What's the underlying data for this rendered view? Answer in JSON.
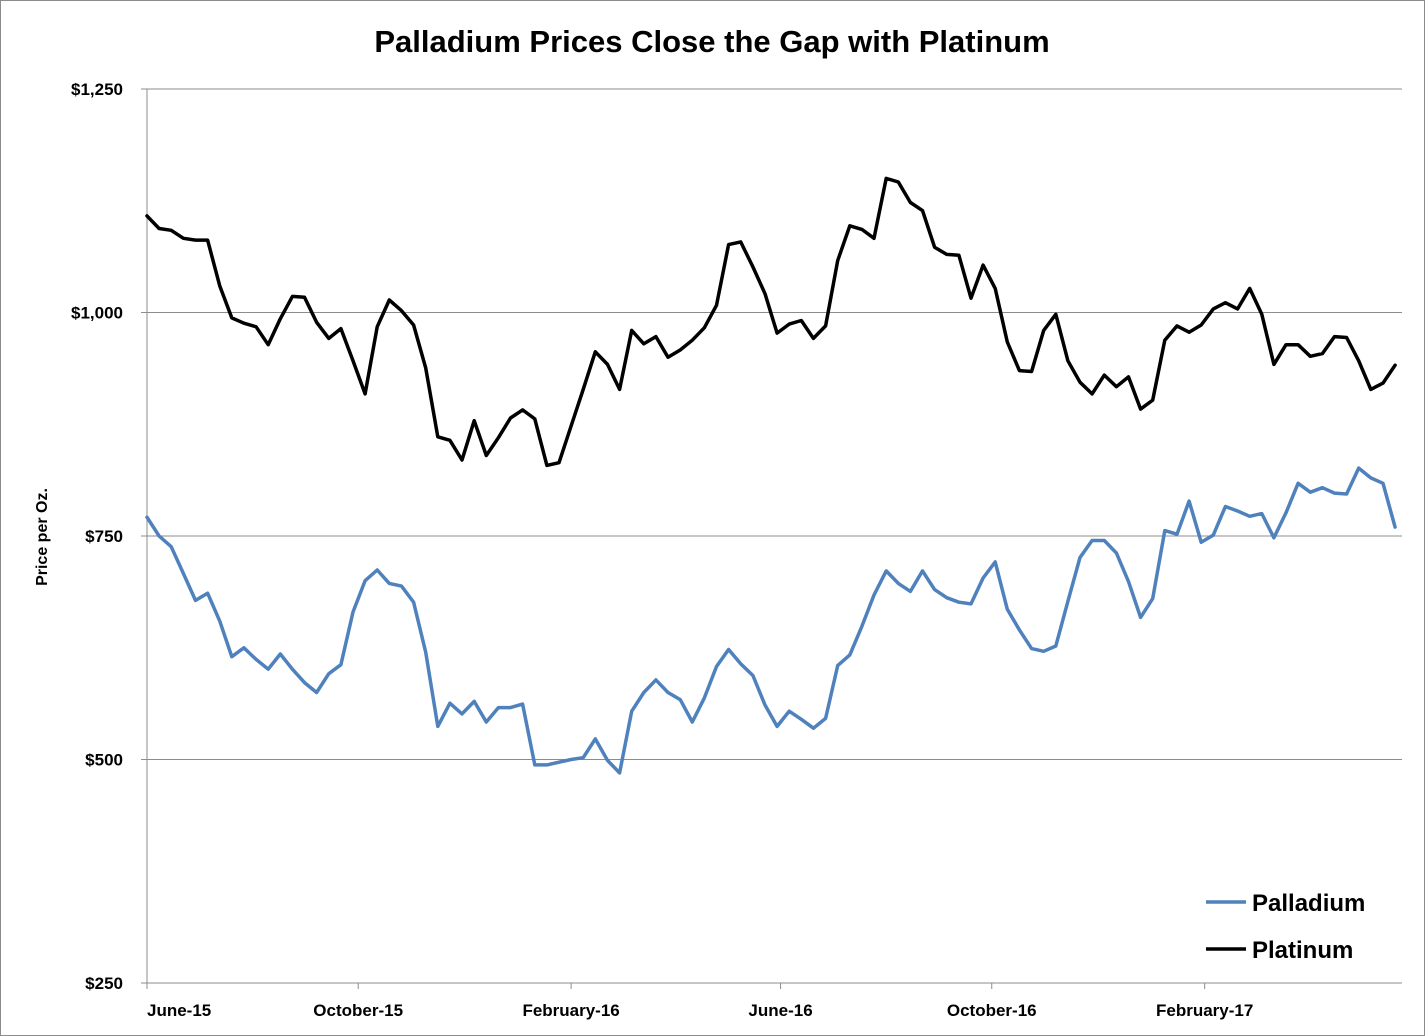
{
  "chart_data": {
    "type": "line",
    "title": "Palladium Prices Close the Gap with Platinum",
    "xlabel": "",
    "ylabel": "Price per Oz.",
    "ylim": [
      250,
      1250
    ],
    "yticks": [
      250,
      500,
      750,
      1000,
      1250
    ],
    "ytick_labels": [
      "$250",
      "$500",
      "$750",
      "$1,000",
      "$1,250"
    ],
    "xlim": [
      "2015-06-01",
      "2017-05-26"
    ],
    "xtick_dates": [
      "2015-06-01",
      "2015-10-01",
      "2016-02-01",
      "2016-06-01",
      "2016-10-01",
      "2017-02-01"
    ],
    "xtick_labels": [
      "June-15",
      "October-15",
      "February-16",
      "June-16",
      "October-16",
      "February-17"
    ],
    "grid": "horizontal",
    "legend_position": "bottom-right",
    "x": [
      "2015-06-01",
      "2015-06-08",
      "2015-06-15",
      "2015-06-22",
      "2015-06-29",
      "2015-07-06",
      "2015-07-13",
      "2015-07-20",
      "2015-07-27",
      "2015-08-03",
      "2015-08-10",
      "2015-08-17",
      "2015-08-24",
      "2015-08-31",
      "2015-09-07",
      "2015-09-14",
      "2015-09-21",
      "2015-09-28",
      "2015-10-05",
      "2015-10-12",
      "2015-10-19",
      "2015-10-26",
      "2015-11-02",
      "2015-11-09",
      "2015-11-16",
      "2015-11-23",
      "2015-11-30",
      "2015-12-07",
      "2015-12-14",
      "2015-12-21",
      "2015-12-28",
      "2016-01-04",
      "2016-01-11",
      "2016-01-18",
      "2016-01-25",
      "2016-02-01",
      "2016-02-08",
      "2016-02-15",
      "2016-02-22",
      "2016-02-29",
      "2016-03-07",
      "2016-03-14",
      "2016-03-21",
      "2016-03-28",
      "2016-04-04",
      "2016-04-11",
      "2016-04-18",
      "2016-04-25",
      "2016-05-02",
      "2016-05-09",
      "2016-05-16",
      "2016-05-23",
      "2016-05-30",
      "2016-06-06",
      "2016-06-13",
      "2016-06-20",
      "2016-06-27",
      "2016-07-04",
      "2016-07-11",
      "2016-07-18",
      "2016-07-25",
      "2016-08-01",
      "2016-08-08",
      "2016-08-15",
      "2016-08-22",
      "2016-08-29",
      "2016-09-05",
      "2016-09-12",
      "2016-09-19",
      "2016-09-26",
      "2016-10-03",
      "2016-10-10",
      "2016-10-17",
      "2016-10-24",
      "2016-10-31",
      "2016-11-07",
      "2016-11-14",
      "2016-11-21",
      "2016-11-28",
      "2016-12-05",
      "2016-12-12",
      "2016-12-19",
      "2016-12-26",
      "2017-01-02",
      "2017-01-09",
      "2017-01-16",
      "2017-01-23",
      "2017-01-30",
      "2017-02-06",
      "2017-02-13",
      "2017-02-20",
      "2017-02-27",
      "2017-03-06",
      "2017-03-13",
      "2017-03-20",
      "2017-03-27",
      "2017-04-03",
      "2017-04-10",
      "2017-04-17",
      "2017-04-24",
      "2017-05-01",
      "2017-05-08",
      "2017-05-15",
      "2017-05-22"
    ],
    "series": [
      {
        "name": "Palladium",
        "color": "#4f81bd",
        "values": [
          771,
          750,
          738,
          708,
          678,
          686,
          655,
          615,
          625,
          612,
          601,
          618,
          601,
          586,
          575,
          596,
          606,
          665,
          700,
          712,
          697,
          694,
          676,
          620,
          537,
          563,
          551,
          565,
          542,
          558,
          558,
          562,
          494,
          494,
          497,
          500,
          502,
          523,
          499,
          485,
          554,
          575,
          589,
          575,
          567,
          542,
          569,
          604,
          623,
          607,
          594,
          561,
          537,
          554,
          545,
          535,
          546,
          605,
          617,
          649,
          684,
          711,
          697,
          688,
          711,
          690,
          681,
          676,
          674,
          703,
          721,
          668,
          645,
          624,
          621,
          627,
          677,
          726,
          745,
          745,
          731,
          699,
          659,
          680,
          756,
          752,
          789,
          743,
          751,
          783,
          778,
          772,
          775,
          748,
          776,
          809,
          799,
          804,
          798,
          797,
          826,
          815,
          809,
          760
        ]
      },
      {
        "name": "Platinum",
        "color": "#000000",
        "values": [
          1108,
          1094,
          1092,
          1083,
          1081,
          1081,
          1030,
          994,
          988,
          984,
          964,
          993,
          1018,
          1017,
          989,
          971,
          982,
          946,
          909,
          984,
          1014,
          1002,
          986,
          938,
          861,
          857,
          835,
          879,
          840,
          860,
          882,
          891,
          881,
          829,
          832,
          873,
          914,
          956,
          942,
          914,
          980,
          965,
          973,
          950,
          958,
          969,
          983,
          1008,
          1076,
          1079,
          1051,
          1021,
          977,
          987,
          991,
          971,
          985,
          1058,
          1097,
          1093,
          1083,
          1150,
          1146,
          1123,
          1114,
          1073,
          1065,
          1064,
          1016,
          1053,
          1027,
          967,
          935,
          934,
          980,
          998,
          946,
          922,
          909,
          930,
          917,
          928,
          892,
          902,
          969,
          985,
          978,
          986,
          1004,
          1011,
          1004,
          1027,
          998,
          942,
          964,
          964,
          951,
          954,
          973,
          972,
          946,
          914,
          921,
          941
        ]
      }
    ]
  }
}
